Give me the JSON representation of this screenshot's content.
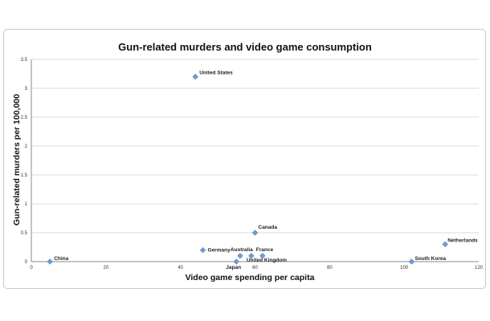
{
  "chart_data": {
    "type": "scatter",
    "title": "Gun-related murders and video game consumption",
    "xlabel": "Video game spending per capita",
    "ylabel": "Gun-related murders per 100,000",
    "xlim": [
      0,
      120
    ],
    "ylim": [
      0,
      3.5
    ],
    "x_ticks": [
      "0",
      "20",
      "40",
      "60",
      "80",
      "100",
      "120"
    ],
    "y_ticks": [
      "0",
      "0.5",
      "1",
      "1.5",
      "2",
      "2.5",
      "3",
      "3.5"
    ],
    "grid": true,
    "legend": "none",
    "marker": "diamond",
    "colors": {
      "point": "#6f9fd8",
      "point_edge": "#4a7dbb"
    },
    "points": [
      {
        "label": "United States",
        "x": 44,
        "y": 3.2
      },
      {
        "label": "China",
        "x": 5,
        "y": 0.0
      },
      {
        "label": "Germany",
        "x": 46,
        "y": 0.2
      },
      {
        "label": "Australia",
        "x": 56,
        "y": 0.1
      },
      {
        "label": "Canada",
        "x": 60,
        "y": 0.5
      },
      {
        "label": "France",
        "x": 62,
        "y": 0.1
      },
      {
        "label": "United Kingdom",
        "x": 59,
        "y": 0.1
      },
      {
        "label": "Japan",
        "x": 55,
        "y": 0.0
      },
      {
        "label": "South Korea",
        "x": 102,
        "y": 0.0
      },
      {
        "label": "Netherlands",
        "x": 111,
        "y": 0.3
      }
    ]
  }
}
